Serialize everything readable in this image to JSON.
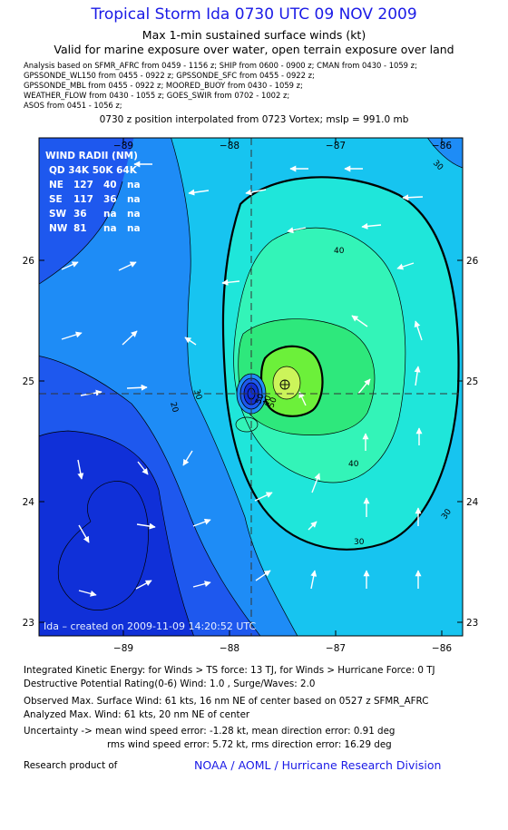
{
  "header": {
    "title": "Tropical Storm Ida 0730 UTC 09 NOV 2009",
    "subtitle1": "Max 1-min sustained surface winds (kt)",
    "subtitle2": "Valid for marine exposure over water, open terrain exposure over land"
  },
  "analysis": {
    "line1": "Analysis based on  SFMR_AFRC from 0459 - 1156 z;  SHIP from 0600 - 0900 z;  CMAN from 0430 - 1059 z;",
    "line2": "GPSSONDE_WL150 from 0455 - 0922 z;  GPSSONDE_SFC from 0455 - 0922 z;",
    "line3": "GPSSONDE_MBL from 0455 - 0922 z;  MOORED_BUOY from 0430 - 1059 z;",
    "line4": "WEATHER_FLOW from 0430 - 1055 z;  GOES_SWIR from 0702 - 1002 z;",
    "line5": "ASOS from 0451 - 1056 z;",
    "position": "0730 z position interpolated from 0723 Vortex; mslp = 991.0 mb"
  },
  "map": {
    "lon_ticks": [
      "−89",
      "−88",
      "−87",
      "−86"
    ],
    "lat_ticks": [
      "26",
      "25",
      "24",
      "23"
    ],
    "wind_radii": {
      "title": "WIND RADII (NM)",
      "header": "QD  34K  50K  64K",
      "rows": [
        {
          "q": "NE",
          "r34": "127",
          "r50": "40",
          "r64": "na"
        },
        {
          "q": "SE",
          "r34": "117",
          "r50": "36",
          "r64": "na"
        },
        {
          "q": "SW",
          "r34": "36",
          "r50": "na",
          "r64": "na"
        },
        {
          "q": "NW",
          "r34": "81",
          "r50": "na",
          "r64": "na"
        }
      ]
    },
    "contour_labels": [
      "50",
      "40",
      "40",
      "30",
      "30",
      "20",
      "30",
      "30",
      "40",
      "50"
    ],
    "created": "Ida – created on 2009-11-09 14:20:52 UTC",
    "colors": {
      "c10": "#1030d8",
      "c20": "#1e58ee",
      "c30": "#1e8cf6",
      "c40": "#17c4f0",
      "c45": "#1fe6da",
      "c50": "#33f4b8",
      "c55": "#2ee87c",
      "c60": "#6cf03a",
      "c65": "#ccf45a",
      "track": "#333333"
    }
  },
  "footer": {
    "ike": "Integrated Kinetic Energy:  for Winds > TS force: 13 TJ,  for Winds > Hurricane Force: 0 TJ",
    "dpr": "Destructive Potential Rating(0-6)   Wind: 1.0 , Surge/Waves: 2.0",
    "observed": "Observed Max. Surface Wind: 61 kts, 16 nm NE of center based on 0527 z SFMR_AFRC",
    "analyzed": "Analyzed Max. Wind: 61 kts, 20 nm NE of center",
    "uncertainty1": "Uncertainty -> mean wind speed error:  -1.28 kt,   mean direction error: 0.91 deg",
    "uncertainty2": "rms wind speed error: 5.72 kt,   rms direction error: 16.29 deg",
    "credit_label": "Research product of",
    "credit_link": "NOAA / AOML / Hurricane Research Division"
  }
}
